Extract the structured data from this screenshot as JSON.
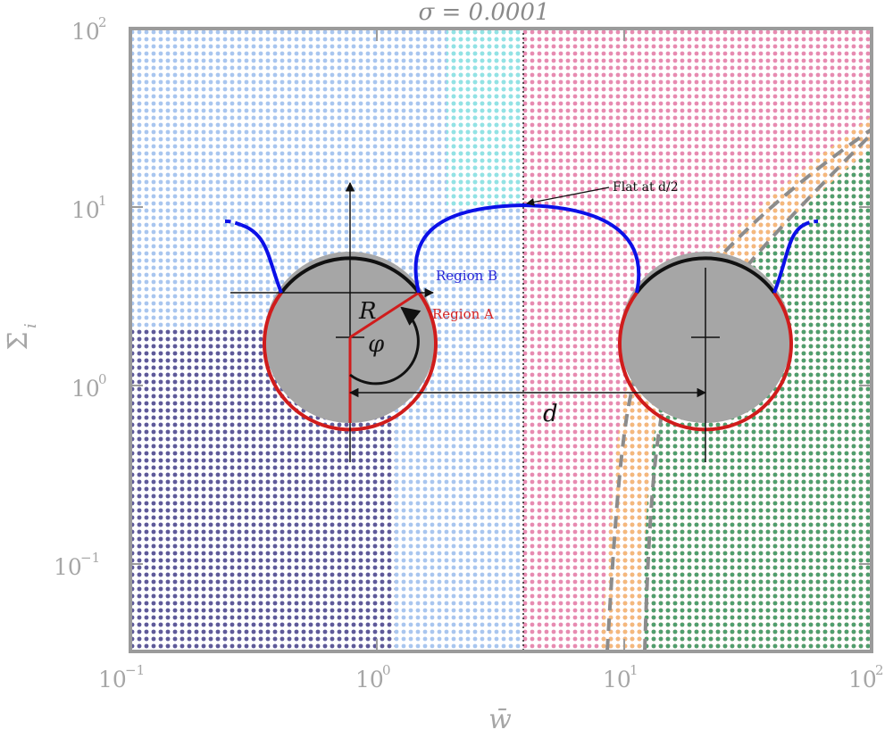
{
  "title": "σ = 0.0001",
  "xlabel": "w̄",
  "ylabel": "Σ̄",
  "ylabel_sub": "i",
  "x_ticks": [
    {
      "base": "10",
      "exp": "−1"
    },
    {
      "base": "10",
      "exp": "0"
    },
    {
      "base": "10",
      "exp": "1"
    },
    {
      "base": "10",
      "exp": "2"
    }
  ],
  "y_ticks": [
    {
      "base": "10",
      "exp": "−1"
    },
    {
      "base": "10",
      "exp": "0"
    },
    {
      "base": "10",
      "exp": "1"
    },
    {
      "base": "10",
      "exp": "2"
    }
  ],
  "axes": {
    "xscale": "log",
    "yscale": "log",
    "xlim": [
      0.1,
      100
    ],
    "ylim": [
      0.03,
      100
    ]
  },
  "annotations": {
    "region_b": "Region B",
    "region_a": "Region A",
    "flat": "Flat at d/2",
    "radius": "R",
    "angle": "φ",
    "distance": "d"
  },
  "colors": {
    "light_blue": "#a9c6ef",
    "dark_purple": "#5f5a99",
    "cyan": "#8fe6e3",
    "pink": "#e78bb1",
    "orange": "#f4b97c",
    "green": "#4f9f6f",
    "blue_curve": "#0b10e8",
    "red_arc": "#d01c1c",
    "disk": "#a6a6a6"
  }
}
